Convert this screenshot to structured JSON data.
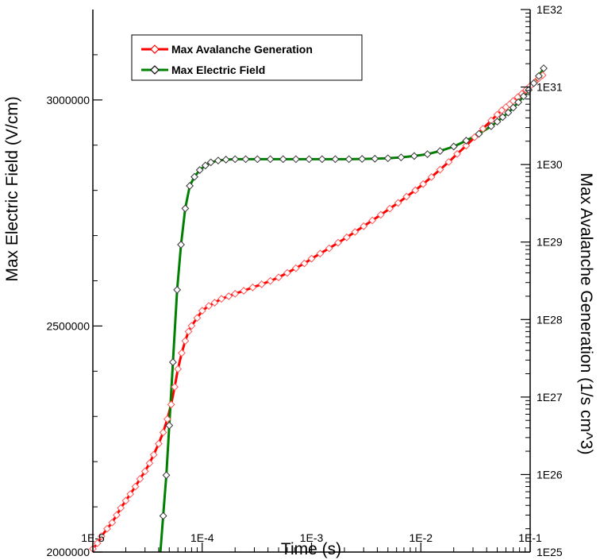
{
  "chart_data": {
    "type": "line",
    "xlabel": "Time (s)",
    "ylabel_left": "Max Electric Field (V/cm)",
    "ylabel_right": "Max Avalanche Generation (1/s cm^3)",
    "x_scale": "log",
    "xlim": [
      1e-05,
      0.2
    ],
    "x_ticks": [
      {
        "value": 1e-05,
        "label": "1E-5"
      },
      {
        "value": 0.0001,
        "label": "1E-4"
      },
      {
        "value": 0.001,
        "label": "1E-3"
      },
      {
        "value": 0.01,
        "label": "1E-2"
      },
      {
        "value": 0.1,
        "label": "1E-1"
      }
    ],
    "ylim_left": [
      2000000,
      3200000
    ],
    "y_ticks_left": [
      {
        "value": 2000000,
        "label": "2000000"
      },
      {
        "value": 2500000,
        "label": "2500000"
      },
      {
        "value": 3000000,
        "label": "3000000"
      }
    ],
    "y_scale_right": "log",
    "ylim_right": [
      1e+25,
      1e+32
    ],
    "y_ticks_right": [
      {
        "value": 1e+25,
        "label": "1E25"
      },
      {
        "value": 1e+26,
        "label": "1E26"
      },
      {
        "value": 1e+27,
        "label": "1E27"
      },
      {
        "value": 1e+28,
        "label": "1E28"
      },
      {
        "value": 1e+29,
        "label": "1E29"
      },
      {
        "value": 1e+30,
        "label": "1E30"
      },
      {
        "value": 1e+31,
        "label": "1E31"
      },
      {
        "value": 1e+32,
        "label": "1E32"
      }
    ],
    "legend_position": "top-left",
    "grid": false,
    "series": [
      {
        "name": "Max Avalanche Generation",
        "axis": "right",
        "color": "#ff0000",
        "marker": "diamond-open",
        "x": [
          1e-05,
          1.1e-05,
          1.2e-05,
          1.35e-05,
          1.5e-05,
          1.65e-05,
          1.8e-05,
          2e-05,
          2.2e-05,
          2.45e-05,
          2.7e-05,
          3e-05,
          3.3e-05,
          3.6e-05,
          4e-05,
          4.4e-05,
          4.8e-05,
          5.2e-05,
          5.6e-05,
          6e-05,
          6.5e-05,
          7e-05,
          7.5e-05,
          8e-05,
          9e-05,
          0.0001,
          0.000115,
          0.00013,
          0.00015,
          0.000175,
          0.0002,
          0.00024,
          0.00029,
          0.00035,
          0.00042,
          0.0005,
          0.0006,
          0.00072,
          0.00086,
          0.001,
          0.0012,
          0.00145,
          0.00175,
          0.0021,
          0.0025,
          0.003,
          0.0036,
          0.0043,
          0.0052,
          0.0062,
          0.0074,
          0.0089,
          0.0105,
          0.0125,
          0.015,
          0.018,
          0.0215,
          0.026,
          0.031,
          0.037,
          0.044,
          0.05,
          0.055,
          0.06,
          0.065,
          0.07,
          0.077,
          0.084,
          0.092,
          0.1,
          0.11,
          0.12,
          0.13
        ],
        "values": [
          1.1e+25,
          1.3e+25,
          1.6e+25,
          2e+25,
          2.4e+25,
          3e+25,
          3.7e+25,
          4.6e+25,
          5.6e+25,
          7e+25,
          8.8e+25,
          1.1e+26,
          1.4e+26,
          1.8e+26,
          2.5e+26,
          3.5e+26,
          5.2e+26,
          8e+26,
          1.35e+27,
          2.3e+27,
          3.7e+27,
          5.3e+27,
          7e+27,
          8.3e+27,
          1.05e+28,
          1.3e+28,
          1.5e+28,
          1.65e+28,
          1.85e+28,
          2e+28,
          2.15e+28,
          2.35e+28,
          2.6e+28,
          2.85e+28,
          3.15e+28,
          3.5e+28,
          4e+28,
          4.6e+28,
          5.3e+28,
          6.1e+28,
          7.1e+28,
          8.3e+28,
          9.8e+28,
          1.15e+29,
          1.35e+29,
          1.6e+29,
          1.9e+29,
          2.25e+29,
          2.7e+29,
          3.2e+29,
          3.85e+29,
          4.65e+29,
          5.6e+29,
          6.9e+29,
          8.6e+29,
          1.08e+30,
          1.37e+30,
          1.75e+30,
          2.25e+30,
          2.9e+30,
          3.7e+30,
          4.4e+30,
          5e+30,
          5.5e+30,
          6e+30,
          6.6e+30,
          7.4e+30,
          8.2e+30,
          9.2e+30,
          1.03e+31,
          1.15e+31,
          1.3e+31,
          1.42e+31
        ]
      },
      {
        "name": "Max Electric Field",
        "axis": "left",
        "color": "#008000",
        "marker": "diamond-open",
        "x": [
          4.4e-05,
          4.7e-05,
          5e-05,
          5.4e-05,
          5.9e-05,
          6.4e-05,
          7e-05,
          7.7e-05,
          8.5e-05,
          9.5e-05,
          0.000107,
          0.00012,
          0.00014,
          0.000165,
          0.0002,
          0.00025,
          0.00032,
          0.00042,
          0.00055,
          0.00072,
          0.00095,
          0.00125,
          0.00165,
          0.0022,
          0.0029,
          0.0038,
          0.005,
          0.0066,
          0.0087,
          0.0115,
          0.015,
          0.02,
          0.026,
          0.034,
          0.044,
          0.05,
          0.056,
          0.063,
          0.07,
          0.078,
          0.087,
          0.097,
          0.108,
          0.12,
          0.133
        ],
        "values": [
          2080000,
          2170000,
          2280000,
          2420000,
          2580000,
          2680000,
          2760000,
          2810000,
          2830000,
          2845000,
          2855000,
          2862000,
          2866000,
          2868000,
          2869000,
          2869000,
          2869000,
          2869000,
          2869000,
          2869000,
          2869000,
          2869000,
          2869000,
          2869000,
          2869500,
          2870000,
          2871000,
          2873000,
          2876000,
          2880000,
          2887000,
          2897000,
          2910000,
          2925000,
          2942000,
          2952000,
          2962000,
          2972000,
          2983000,
          2995000,
          3008000,
          3022000,
          3037000,
          3053000,
          3070000
        ]
      }
    ]
  }
}
